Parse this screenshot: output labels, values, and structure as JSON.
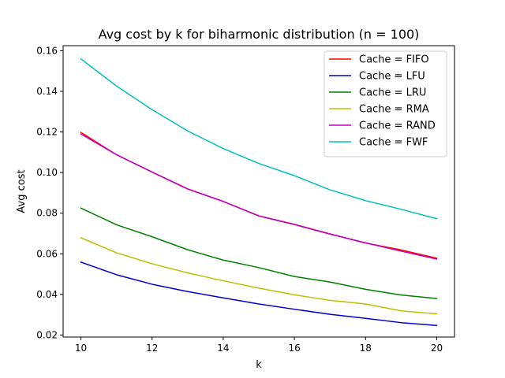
{
  "chart_data": {
    "type": "line",
    "title": "Avg cost by k for biharmonic distribution (n = 100)",
    "xlabel": "k",
    "ylabel": "Avg cost",
    "xlim": [
      9.5,
      20.5
    ],
    "ylim": [
      0.019,
      0.1625
    ],
    "x_ticks": [
      10,
      12,
      14,
      16,
      18,
      20
    ],
    "y_ticks": [
      0.02,
      0.04,
      0.06,
      0.08,
      0.1,
      0.12,
      0.14,
      0.16
    ],
    "y_tick_labels": [
      "0.02",
      "0.04",
      "0.06",
      "0.08",
      "0.10",
      "0.12",
      "0.14",
      "0.16"
    ],
    "grid": false,
    "legend_position": "top-right",
    "x": [
      10,
      11,
      12,
      13,
      14,
      15,
      16,
      17,
      18,
      19,
      20
    ],
    "series": [
      {
        "name": "Cache = FIFO",
        "color": "#ff0000",
        "values": [
          0.1198,
          0.1088,
          0.1003,
          0.092,
          0.0858,
          0.0787,
          0.0745,
          0.0698,
          0.0653,
          0.0619,
          0.0578
        ]
      },
      {
        "name": "Cache = LFU",
        "color": "#0000cc",
        "values": [
          0.0559,
          0.0497,
          0.045,
          0.0414,
          0.0383,
          0.0353,
          0.0327,
          0.0302,
          0.0282,
          0.0261,
          0.0247
        ]
      },
      {
        "name": "Cache = LRU",
        "color": "#008000",
        "values": [
          0.0825,
          0.0743,
          0.0684,
          0.062,
          0.0569,
          0.0532,
          0.0488,
          0.0461,
          0.0425,
          0.0397,
          0.038
        ]
      },
      {
        "name": "Cache = RMA",
        "color": "#bfbf00",
        "values": [
          0.0679,
          0.0605,
          0.0551,
          0.0506,
          0.0467,
          0.0431,
          0.0398,
          0.0371,
          0.0353,
          0.0319,
          0.0304
        ]
      },
      {
        "name": "Cache = RAND",
        "color": "#bf00bf",
        "values": [
          0.119,
          0.1088,
          0.1002,
          0.0919,
          0.0858,
          0.0786,
          0.0744,
          0.0697,
          0.0654,
          0.0613,
          0.0574
        ]
      },
      {
        "name": "Cache = FWF",
        "color": "#00bfbf",
        "values": [
          0.156,
          0.1426,
          0.131,
          0.1205,
          0.1118,
          0.1045,
          0.0985,
          0.0915,
          0.0862,
          0.0819,
          0.0773
        ]
      }
    ]
  }
}
